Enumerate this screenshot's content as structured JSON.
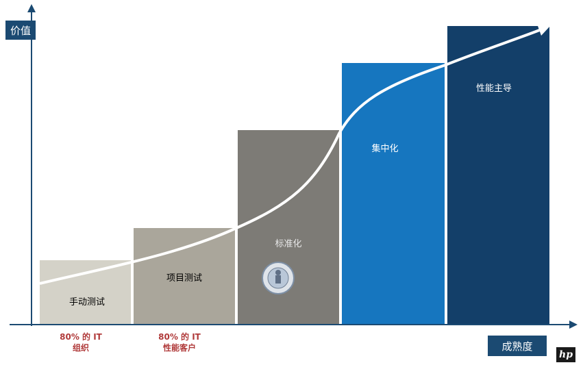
{
  "axes": {
    "y_label": "价值",
    "x_label": "成熟度"
  },
  "stages": [
    {
      "label": "手动测试",
      "color": "#d4d2c8",
      "text_color": "#2b2b2b",
      "value": 1
    },
    {
      "label": "项目测试",
      "color": "#aaa69b",
      "text_color": "#2b2b2b",
      "value": 2
    },
    {
      "label": "标准化",
      "color": "#7d7b76",
      "text_color": "#e8e8e8",
      "value": 4
    },
    {
      "label": "集中化",
      "color": "#1676bf",
      "text_color": "#ffffff",
      "value": 5
    },
    {
      "label": "性能主导",
      "color": "#133f69",
      "text_color": "#ffffff",
      "value": 6
    }
  ],
  "notes": [
    {
      "line1": "80% 的 IT",
      "line2": "组织"
    },
    {
      "line1": "80% 的 IT",
      "line2": "性能客户"
    }
  ],
  "logo": {
    "text": "hp",
    "icon": "hp-logo"
  },
  "colors": {
    "axis": "#1b4a72",
    "curve": "#ffffff",
    "note": "#b03a3a"
  }
}
